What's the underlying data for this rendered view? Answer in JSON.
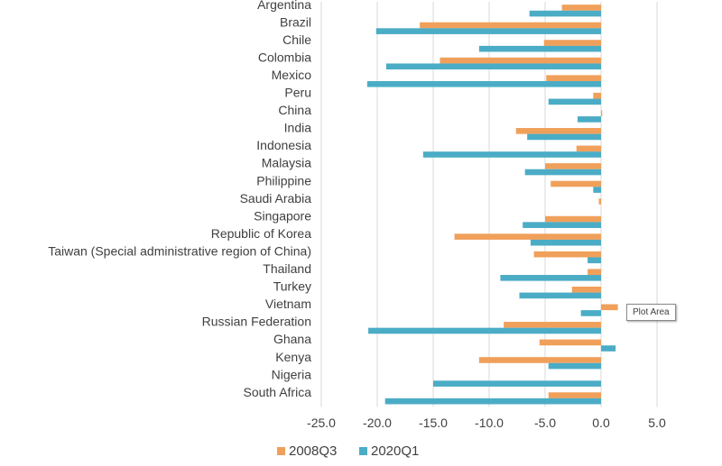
{
  "chart_data": {
    "type": "bar",
    "orientation": "horizontal",
    "categories": [
      "Argentina",
      "Brazil",
      "Chile",
      "Colombia",
      "Mexico",
      "Peru",
      "China",
      "India",
      "Indonesia",
      "Malaysia",
      "Philippine",
      "Saudi Arabia",
      "Singapore",
      "Republic of Korea",
      "Taiwan (Special administrative region of China)",
      "Thailand",
      "Turkey",
      "Vietnam",
      "Russian Federation",
      "Ghana",
      "Kenya",
      "Nigeria",
      "South Africa"
    ],
    "series": [
      {
        "name": "2008Q3",
        "color": "#F0A05A",
        "values": [
          -3.5,
          -16.2,
          -5.1,
          -14.4,
          -4.9,
          -0.7,
          0.1,
          -7.6,
          -2.2,
          -5.0,
          -4.5,
          -0.2,
          -5.0,
          -13.1,
          -6.0,
          -1.2,
          -2.6,
          1.5,
          -8.7,
          -5.5,
          -10.9,
          0.0,
          -4.7
        ]
      },
      {
        "name": "2020Q1",
        "color": "#4BACC6",
        "values": [
          -6.4,
          -20.1,
          -10.9,
          -19.2,
          -20.9,
          -4.7,
          -2.1,
          -6.6,
          -15.9,
          -6.8,
          -0.7,
          0.0,
          -7.0,
          -6.3,
          -1.2,
          -9.0,
          -7.3,
          -1.8,
          -20.8,
          1.3,
          -4.7,
          -15.0,
          -19.3
        ]
      }
    ],
    "xlim": [
      -25,
      5
    ],
    "xticks": [
      "-25.0",
      "-20.0",
      "-15.0",
      "-10.0",
      "-5.0",
      "0.0",
      "5.0"
    ],
    "grid": "vertical",
    "legend": "bottom"
  },
  "tooltip": {
    "text": "Plot Area"
  }
}
